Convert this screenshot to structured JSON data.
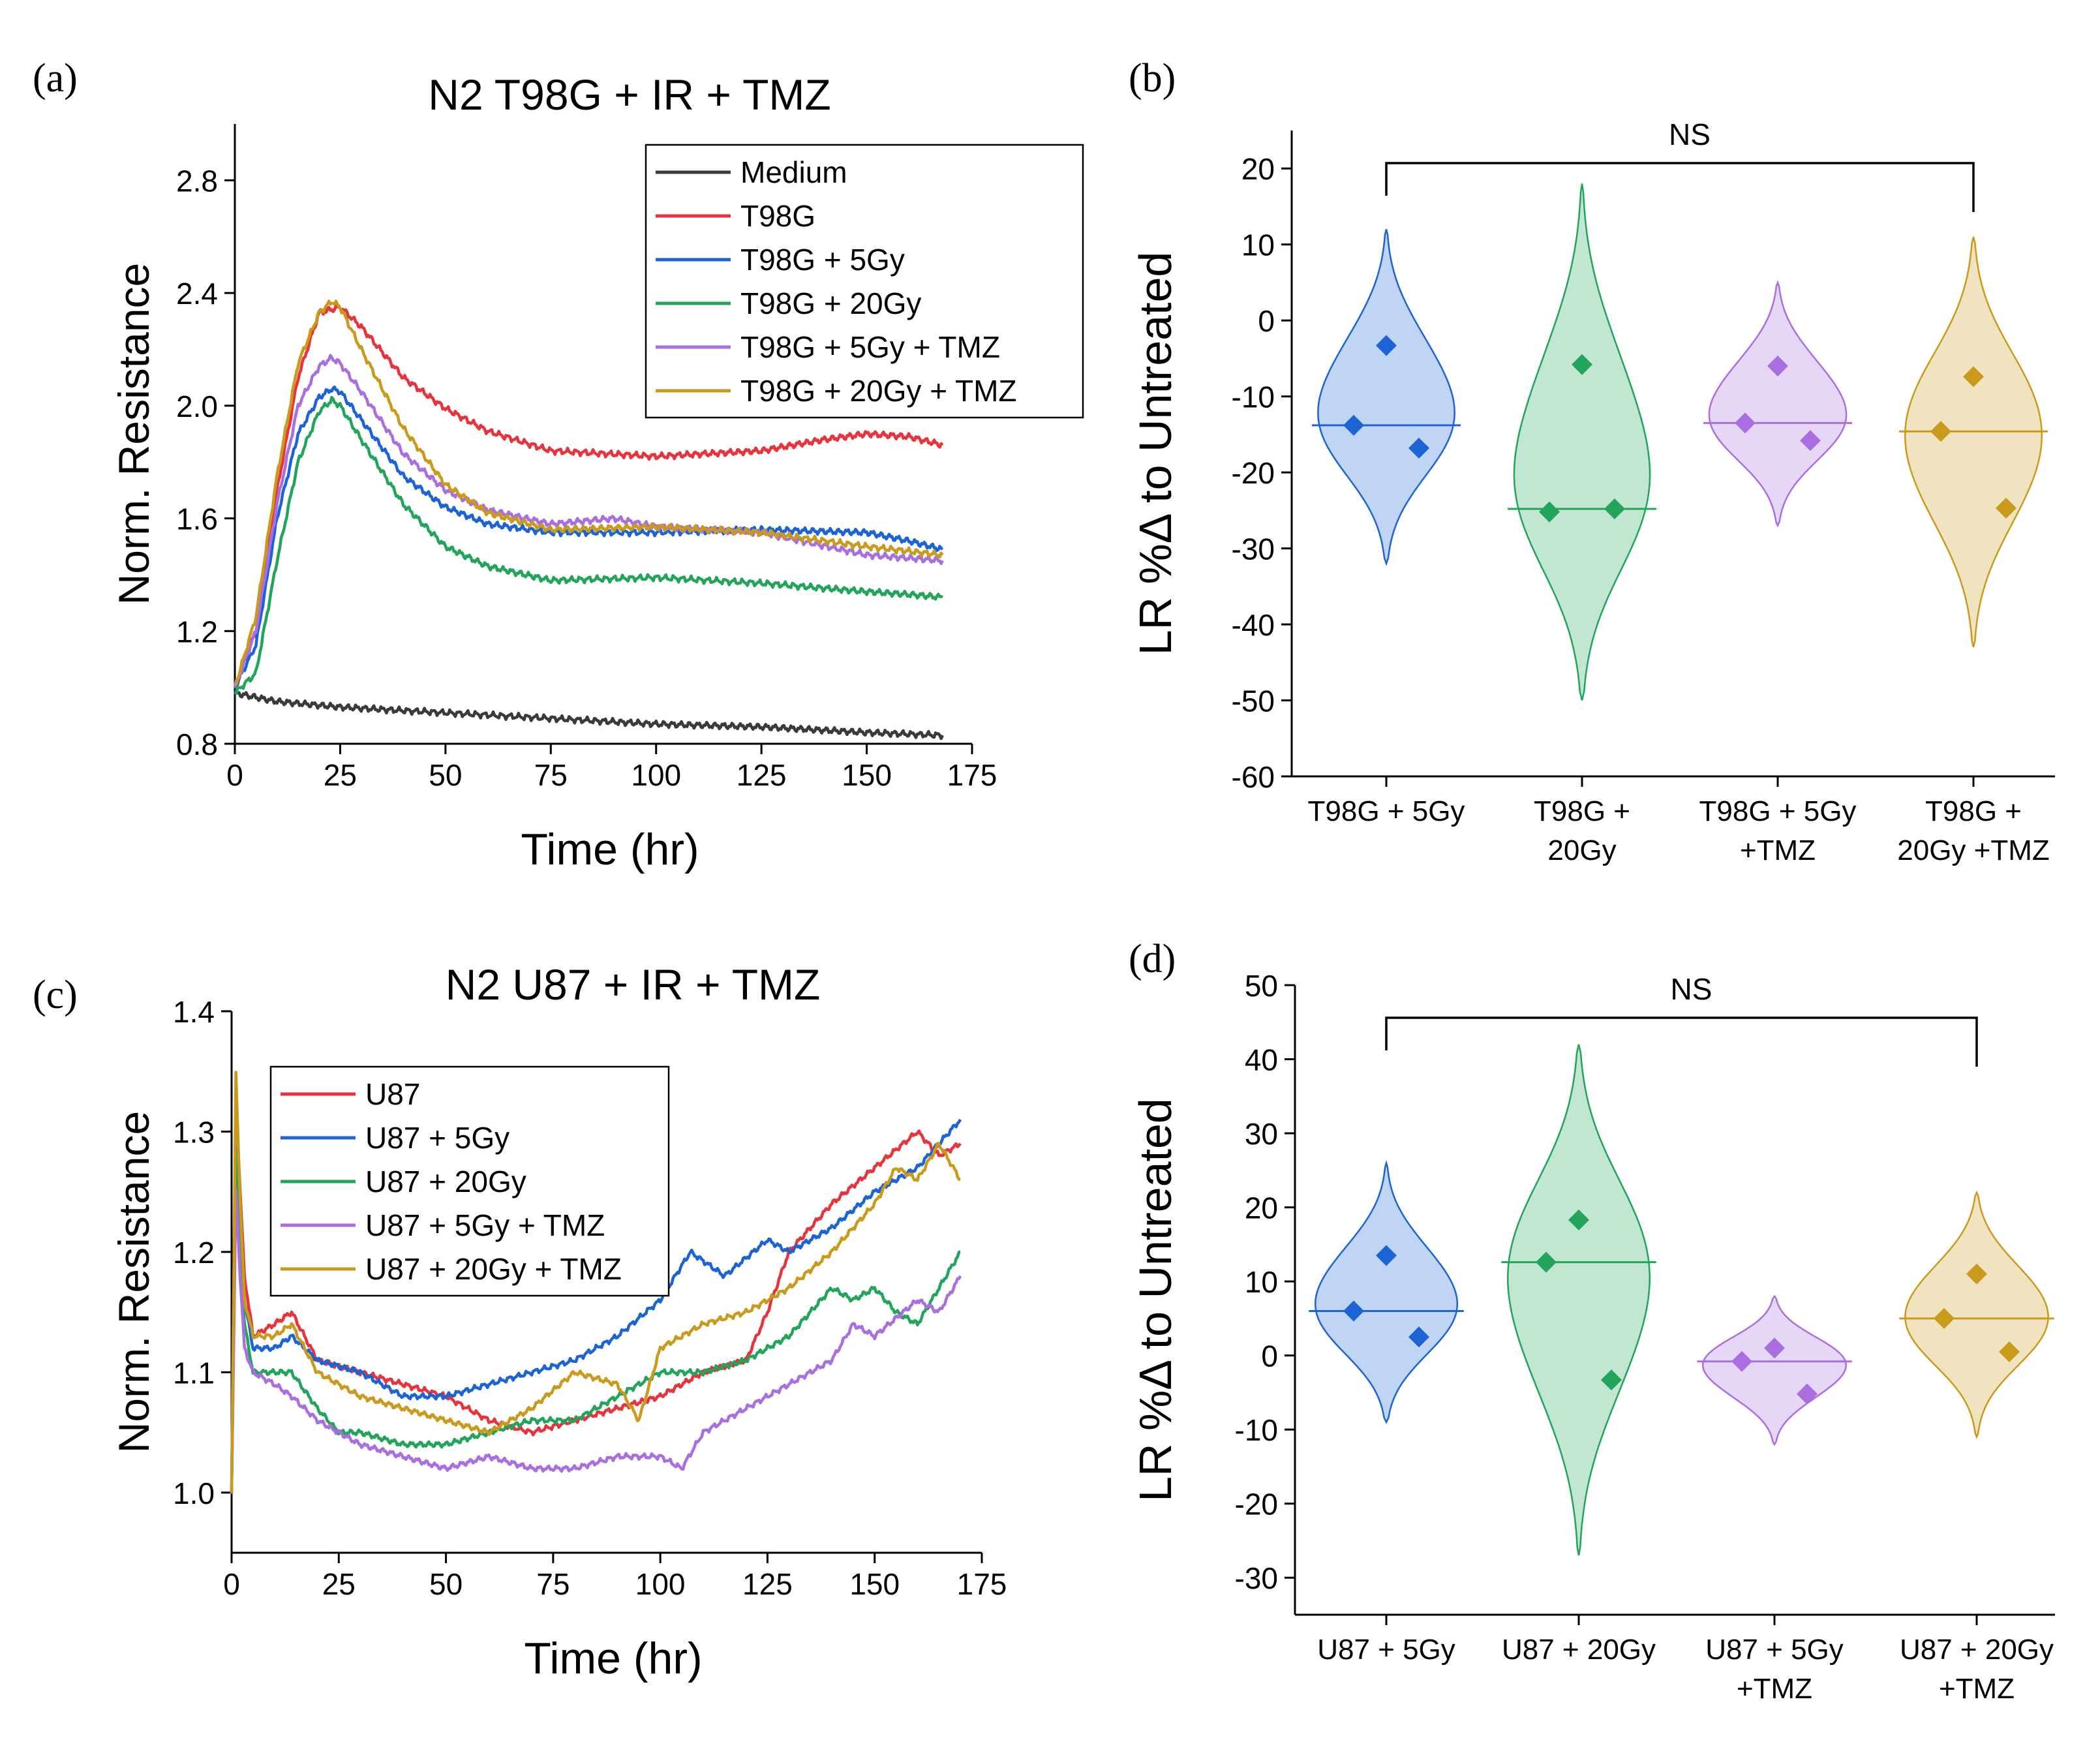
{
  "chart_data": [
    {
      "id": "a",
      "type": "line",
      "panel_label": "(a)",
      "title": "N2 T98G + IR + TMZ",
      "xlabel": "Time (hr)",
      "ylabel": "Norm. Resistance",
      "xlim": [
        0,
        175
      ],
      "ylim": [
        0.8,
        3.0
      ],
      "xticks": [
        0,
        25,
        50,
        75,
        100,
        125,
        150,
        175
      ],
      "yticks": [
        0.8,
        1.2,
        1.6,
        2.0,
        2.4,
        2.8
      ],
      "ytick_labels": [
        "0.8",
        "1.2",
        "1.6",
        "2.0",
        "2.4",
        "2.8"
      ],
      "legend": "top-right",
      "series": [
        {
          "name": "Medium",
          "color": "#3a3a3a",
          "x": [
            0,
            10,
            25,
            50,
            75,
            100,
            125,
            150,
            168
          ],
          "y": [
            0.98,
            0.95,
            0.93,
            0.91,
            0.89,
            0.87,
            0.86,
            0.84,
            0.83
          ]
        },
        {
          "name": "T98G",
          "color": "#e8323c",
          "x": [
            0,
            5,
            10,
            15,
            20,
            25,
            30,
            40,
            50,
            60,
            75,
            100,
            125,
            140,
            150,
            160,
            168
          ],
          "y": [
            1.0,
            1.2,
            1.7,
            2.1,
            2.33,
            2.35,
            2.28,
            2.1,
            1.99,
            1.91,
            1.84,
            1.82,
            1.84,
            1.88,
            1.9,
            1.89,
            1.86
          ]
        },
        {
          "name": "T98G + 5Gy",
          "color": "#1c63d6",
          "x": [
            0,
            5,
            10,
            15,
            20,
            23,
            25,
            30,
            40,
            50,
            60,
            75,
            100,
            125,
            150,
            160,
            168
          ],
          "y": [
            1.0,
            1.15,
            1.6,
            1.9,
            2.03,
            2.06,
            2.05,
            1.95,
            1.75,
            1.64,
            1.58,
            1.55,
            1.55,
            1.56,
            1.55,
            1.52,
            1.49
          ]
        },
        {
          "name": "T98G + 20Gy",
          "color": "#22a45a",
          "x": [
            0,
            5,
            10,
            15,
            20,
            23,
            25,
            30,
            40,
            50,
            60,
            75,
            100,
            125,
            150,
            160,
            168
          ],
          "y": [
            0.98,
            1.05,
            1.45,
            1.8,
            1.98,
            2.02,
            2.0,
            1.88,
            1.65,
            1.5,
            1.43,
            1.38,
            1.39,
            1.37,
            1.34,
            1.33,
            1.32
          ]
        },
        {
          "name": "T98G + 5Gy + TMZ",
          "color": "#a96fe0",
          "x": [
            0,
            5,
            10,
            15,
            20,
            23,
            25,
            30,
            40,
            50,
            60,
            75,
            90,
            100,
            125,
            150,
            168
          ],
          "y": [
            1.0,
            1.2,
            1.65,
            2.0,
            2.14,
            2.17,
            2.15,
            2.05,
            1.83,
            1.7,
            1.63,
            1.58,
            1.6,
            1.57,
            1.55,
            1.47,
            1.45
          ]
        },
        {
          "name": "T98G + 20Gy + TMZ",
          "color": "#c99a1c",
          "x": [
            0,
            5,
            10,
            15,
            20,
            23,
            25,
            30,
            40,
            50,
            60,
            75,
            100,
            125,
            150,
            168
          ],
          "y": [
            1.0,
            1.25,
            1.75,
            2.15,
            2.33,
            2.37,
            2.35,
            2.2,
            1.92,
            1.72,
            1.62,
            1.56,
            1.57,
            1.55,
            1.5,
            1.47
          ]
        }
      ]
    },
    {
      "id": "b",
      "type": "violin",
      "panel_label": "(b)",
      "ylabel": "LR %Δ to Untreated",
      "ylim": [
        -60,
        25
      ],
      "yticks": [
        -60,
        -50,
        -40,
        -30,
        -20,
        -10,
        0,
        10,
        20
      ],
      "significance": "NS",
      "categories": [
        {
          "lines": [
            "T98G + 5Gy"
          ],
          "color": "#1c63d6",
          "points": [
            -3.3,
            -13.8,
            -16.8
          ],
          "median": -13.8,
          "min": -32,
          "max": 12
        },
        {
          "lines": [
            "T98G +",
            "20Gy"
          ],
          "color": "#22a45a",
          "points": [
            -5.8,
            -25.2,
            -24.8
          ],
          "median": -24.8,
          "min": -50,
          "max": 18
        },
        {
          "lines": [
            "T98G + 5Gy",
            "+TMZ"
          ],
          "color": "#a96fe0",
          "points": [
            -6.0,
            -13.5,
            -15.8
          ],
          "median": -13.5,
          "min": -27,
          "max": 5
        },
        {
          "lines": [
            "T98G +",
            "20Gy +TMZ"
          ],
          "color": "#c99a1c",
          "points": [
            -7.4,
            -14.6,
            -24.7
          ],
          "median": -14.6,
          "min": -43,
          "max": 11
        }
      ]
    },
    {
      "id": "c",
      "type": "line",
      "panel_label": "(c)",
      "title": "N2 U87 + IR + TMZ",
      "xlabel": "Time (hr)",
      "ylabel": "Norm. Resistance",
      "xlim": [
        0,
        175
      ],
      "ylim": [
        0.95,
        1.4
      ],
      "xticks": [
        0,
        25,
        50,
        75,
        100,
        125,
        150,
        175
      ],
      "yticks": [
        1.0,
        1.1,
        1.2,
        1.3,
        1.4
      ],
      "ytick_labels": [
        "1.0",
        "1.1",
        "1.2",
        "1.3",
        "1.4"
      ],
      "legend": "upper-left",
      "series": [
        {
          "name": "U87",
          "color": "#e8323c",
          "x": [
            0,
            1,
            2,
            3,
            5,
            10,
            14,
            20,
            30,
            40,
            50,
            60,
            70,
            80,
            90,
            100,
            110,
            120,
            125,
            130,
            140,
            150,
            160,
            165,
            170
          ],
          "y": [
            1.0,
            1.33,
            1.25,
            1.18,
            1.13,
            1.14,
            1.15,
            1.11,
            1.1,
            1.09,
            1.08,
            1.06,
            1.05,
            1.06,
            1.07,
            1.08,
            1.1,
            1.11,
            1.15,
            1.2,
            1.24,
            1.27,
            1.3,
            1.28,
            1.29
          ]
        },
        {
          "name": "U87 + 5Gy",
          "color": "#1c63d6",
          "x": [
            0,
            1,
            2,
            3,
            5,
            10,
            14,
            20,
            30,
            40,
            50,
            60,
            70,
            80,
            90,
            100,
            107,
            115,
            125,
            130,
            140,
            150,
            160,
            165,
            170
          ],
          "y": [
            1.0,
            1.3,
            1.22,
            1.16,
            1.12,
            1.12,
            1.13,
            1.11,
            1.1,
            1.08,
            1.08,
            1.09,
            1.1,
            1.11,
            1.13,
            1.16,
            1.2,
            1.18,
            1.21,
            1.2,
            1.22,
            1.25,
            1.27,
            1.29,
            1.31
          ]
        },
        {
          "name": "U87 + 20Gy",
          "color": "#22a45a",
          "x": [
            0,
            1,
            2,
            3,
            5,
            10,
            14,
            20,
            25,
            30,
            40,
            50,
            60,
            70,
            80,
            90,
            100,
            110,
            120,
            130,
            140,
            145,
            150,
            155,
            160,
            165,
            170
          ],
          "y": [
            1.0,
            1.28,
            1.2,
            1.14,
            1.1,
            1.1,
            1.1,
            1.07,
            1.05,
            1.05,
            1.04,
            1.04,
            1.05,
            1.06,
            1.06,
            1.08,
            1.1,
            1.1,
            1.11,
            1.13,
            1.17,
            1.16,
            1.17,
            1.15,
            1.14,
            1.17,
            1.2
          ]
        },
        {
          "name": "U87 + 5Gy + TMZ",
          "color": "#a96fe0",
          "x": [
            0,
            1,
            2,
            3,
            5,
            10,
            14,
            20,
            25,
            30,
            40,
            50,
            60,
            70,
            80,
            90,
            100,
            105,
            110,
            120,
            130,
            140,
            145,
            150,
            160,
            165,
            170
          ],
          "y": [
            1.0,
            1.25,
            1.18,
            1.12,
            1.1,
            1.09,
            1.08,
            1.06,
            1.05,
            1.04,
            1.03,
            1.02,
            1.03,
            1.02,
            1.02,
            1.03,
            1.03,
            1.02,
            1.05,
            1.07,
            1.09,
            1.11,
            1.14,
            1.13,
            1.16,
            1.15,
            1.18
          ]
        },
        {
          "name": "U87 + 20Gy + TMZ",
          "color": "#c99a1c",
          "x": [
            0,
            1,
            2,
            3,
            5,
            10,
            14,
            20,
            30,
            40,
            50,
            60,
            70,
            80,
            90,
            95,
            100,
            110,
            120,
            130,
            140,
            150,
            155,
            160,
            165,
            170
          ],
          "y": [
            1.0,
            1.35,
            1.24,
            1.16,
            1.13,
            1.13,
            1.14,
            1.1,
            1.08,
            1.07,
            1.06,
            1.05,
            1.07,
            1.1,
            1.09,
            1.06,
            1.12,
            1.14,
            1.15,
            1.17,
            1.2,
            1.24,
            1.27,
            1.26,
            1.29,
            1.26
          ]
        }
      ]
    },
    {
      "id": "d",
      "type": "violin",
      "panel_label": "(d)",
      "ylabel": "LR %Δ to Untreated",
      "ylim": [
        -35,
        50
      ],
      "yticks": [
        -30,
        -20,
        -10,
        0,
        10,
        20,
        30,
        40,
        50
      ],
      "significance": "NS",
      "categories": [
        {
          "lines": [
            "U87 + 5Gy"
          ],
          "color": "#1c63d6",
          "points": [
            13.5,
            6.0,
            2.5
          ],
          "median": 6.0,
          "min": -9,
          "max": 26
        },
        {
          "lines": [
            "U87 + 20Gy"
          ],
          "color": "#22a45a",
          "points": [
            18.3,
            12.6,
            -3.3
          ],
          "median": 12.6,
          "min": -27,
          "max": 42
        },
        {
          "lines": [
            "U87 + 5Gy",
            "+TMZ"
          ],
          "color": "#a96fe0",
          "points": [
            1.0,
            -0.8,
            -5.2
          ],
          "median": -0.8,
          "min": -12,
          "max": 8
        },
        {
          "lines": [
            "U87 + 20Gy",
            "+TMZ"
          ],
          "color": "#c99a1c",
          "points": [
            11.0,
            5.0,
            0.5
          ],
          "median": 5.0,
          "min": -11,
          "max": 22
        }
      ]
    }
  ]
}
